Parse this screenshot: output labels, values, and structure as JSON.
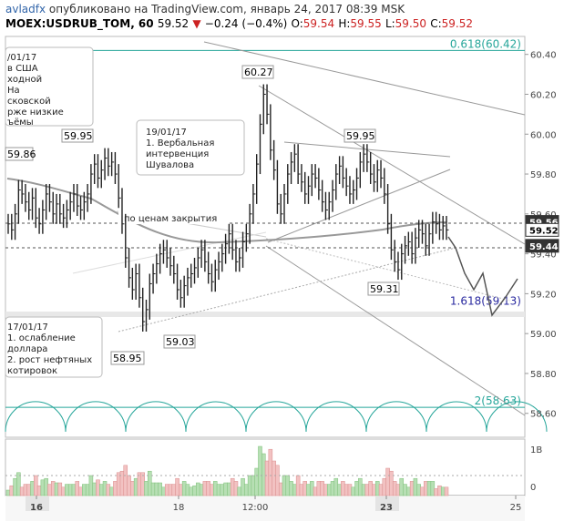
{
  "header": {
    "author": "avladfx",
    "published": "опубликовано на TradingView.com, январь 24, 2017 08:39 MSK",
    "symbol": "MOEX:USDRUB_TOM, 60",
    "last": "59.52",
    "change": "−0.24 (−0.4%)",
    "o_label": "O:",
    "o": "59.54",
    "h_label": "H:",
    "h": "59.55",
    "l_label": "L:",
    "l": "59.50",
    "c_label": "C:",
    "c": "59.52"
  },
  "chart_data": {
    "type": "candlestick",
    "ylim": [
      58.48,
      60.49
    ],
    "y_ticks": [
      "60.40",
      "60.20",
      "60.00",
      "59.80",
      "59.60",
      "59.40",
      "59.20",
      "59.00",
      "58.80",
      "58.60"
    ],
    "x_ticks": [
      "16",
      "18",
      "12:00",
      "23",
      "25"
    ],
    "price_tags": [
      {
        "label": "59.56",
        "value": 59.56
      },
      {
        "label": "59.52",
        "value": 59.52
      },
      {
        "label": "59.44",
        "value": 59.44
      }
    ],
    "highlights": [
      "16",
      "23"
    ],
    "levels": [
      {
        "label": "0.618(60.42)",
        "value": 60.42,
        "color": "#26a69a"
      },
      {
        "label": "1.618(59.13)",
        "value": 59.13,
        "color": "#2a2aa0"
      },
      {
        "label": "2(58.63)",
        "value": 58.63,
        "color": "#26a69a"
      }
    ],
    "point_labels": [
      "59.86",
      "59.95",
      "60.27",
      "59.95",
      "59.03",
      "58.95",
      "59.31"
    ],
    "closing_label": "по ценам закрытия",
    "volume_ticks": [
      "1B",
      "0"
    ],
    "series": [
      {
        "values": [
          59.55,
          59.52,
          59.6,
          59.72,
          59.7,
          59.66,
          59.62,
          59.68,
          59.58,
          59.55,
          59.62,
          59.7,
          59.66,
          59.6,
          59.65,
          59.6,
          59.58,
          59.62,
          59.66,
          59.7,
          59.64,
          59.62,
          59.66,
          59.7,
          59.8,
          59.85,
          59.78,
          59.82,
          59.88,
          59.84,
          59.86,
          59.8,
          59.68,
          59.55,
          59.38,
          59.28,
          59.22,
          59.3,
          59.18,
          59.06,
          59.12,
          59.25,
          59.3,
          59.35,
          59.4,
          59.42,
          59.38,
          59.34,
          59.3,
          59.22,
          59.18,
          59.24,
          59.28,
          59.3,
          59.33,
          59.38,
          59.42,
          59.36,
          59.3,
          59.26,
          59.32,
          59.36,
          59.4,
          59.45,
          59.5,
          59.42,
          59.36,
          59.38,
          59.46,
          59.5,
          59.6,
          59.7,
          59.85,
          60.05,
          60.2,
          60.1,
          59.92,
          59.82,
          59.65,
          59.6,
          59.7,
          59.8,
          59.86,
          59.9,
          59.8,
          59.76,
          59.7,
          59.74,
          59.8,
          59.78,
          59.72,
          59.66,
          59.62,
          59.66,
          59.72,
          59.8,
          59.84,
          59.78,
          59.74,
          59.7,
          59.72,
          59.78,
          59.86,
          59.9,
          59.86,
          59.8,
          59.76,
          59.82,
          59.78,
          59.7,
          59.55,
          59.42,
          59.36,
          59.32,
          59.4,
          59.44,
          59.46,
          59.4,
          59.48,
          59.52,
          59.5,
          59.44,
          59.5,
          59.56,
          59.55,
          59.52,
          59.54,
          59.52
        ]
      }
    ]
  },
  "notes": {
    "n1": [
      "/01/17",
      "в США",
      "ходной",
      "На",
      "сковской",
      "рже низкие",
      "ъёмы"
    ],
    "n2": [
      "19/01/17",
      "1. Вербальная",
      "интервенция",
      "Шувалова"
    ],
    "n3": [
      "17/01/17",
      "1. ослабление",
      "доллара",
      "2. рост нефтяных",
      "котировок"
    ]
  }
}
